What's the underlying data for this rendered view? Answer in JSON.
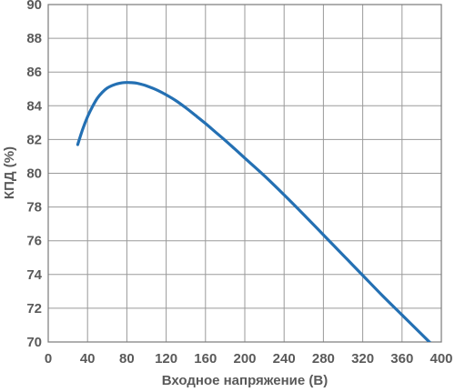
{
  "chart_data": {
    "type": "line",
    "title": "",
    "xlabel": "Входное напряжение (В)",
    "ylabel": "КПД (%)",
    "xlim": [
      0,
      400
    ],
    "ylim": [
      70,
      90
    ],
    "xticks": [
      0,
      40,
      80,
      120,
      160,
      200,
      240,
      280,
      320,
      360,
      400
    ],
    "yticks": [
      70,
      72,
      74,
      76,
      78,
      80,
      82,
      84,
      86,
      88,
      90
    ],
    "grid": true,
    "legend": "none",
    "colors": {
      "series": "#2470b3",
      "grid": "#9a9a9a",
      "text": "#5a5a5a"
    },
    "series": [
      {
        "x": [
          30,
          35,
          40,
          45,
          50,
          55,
          60,
          65,
          70,
          75,
          80,
          85,
          90,
          95,
          100,
          110,
          120,
          130,
          140,
          150,
          160,
          170,
          180,
          190,
          200,
          220,
          240,
          260,
          280,
          300,
          320,
          340,
          360,
          380,
          400
        ],
        "values": [
          81.7,
          82.6,
          83.35,
          83.95,
          84.45,
          84.8,
          85.05,
          85.2,
          85.3,
          85.36,
          85.38,
          85.37,
          85.34,
          85.27,
          85.18,
          84.95,
          84.65,
          84.3,
          83.88,
          83.42,
          82.95,
          82.45,
          81.95,
          81.43,
          80.9,
          79.85,
          78.72,
          77.55,
          76.35,
          75.15,
          73.95,
          72.75,
          71.6,
          70.45,
          69.3
        ]
      }
    ]
  }
}
